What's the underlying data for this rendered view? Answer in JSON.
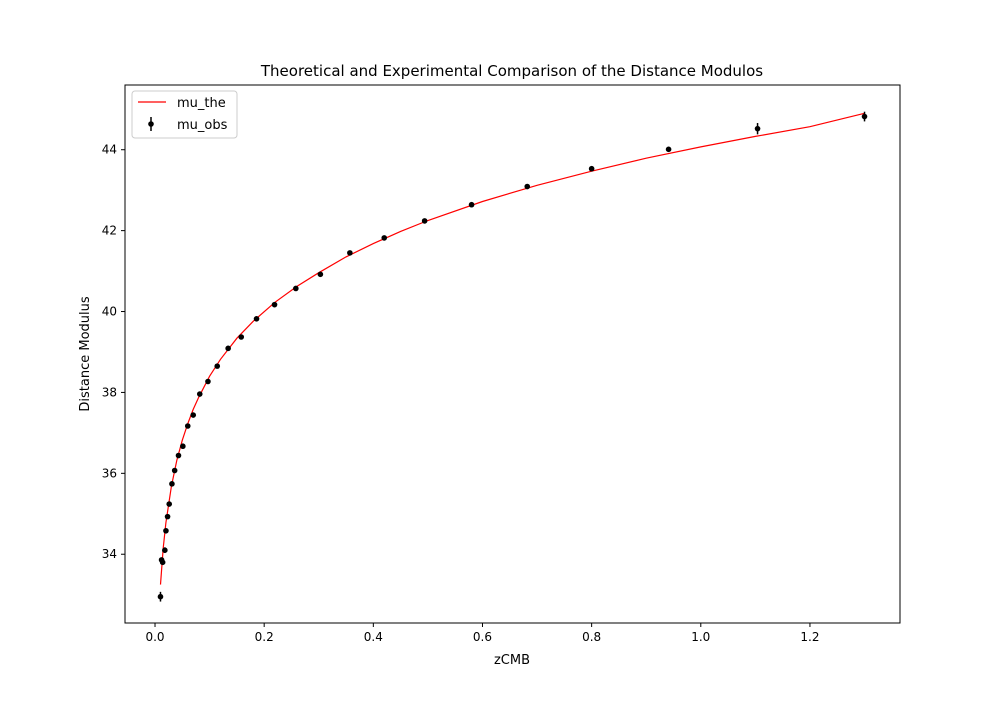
{
  "chart_data": {
    "type": "scatter",
    "title": "Theoretical and Experimental Comparison of the Distance Modulos",
    "xlabel": "zCMB",
    "ylabel": "Distance Modulus",
    "xlim": [
      -0.055,
      1.365
    ],
    "ylim": [
      32.3,
      45.6
    ],
    "xticks": [
      0.0,
      0.2,
      0.4,
      0.6,
      0.8,
      1.0,
      1.2
    ],
    "xtick_labels": [
      "0.0",
      "0.2",
      "0.4",
      "0.6",
      "0.8",
      "1.0",
      "1.2"
    ],
    "yticks": [
      34,
      36,
      38,
      40,
      42,
      44
    ],
    "ytick_labels": [
      "34",
      "36",
      "38",
      "40",
      "42",
      "44"
    ],
    "grid": false,
    "legend_position": "top-left",
    "series": [
      {
        "name": "mu_the",
        "kind": "line",
        "color": "#ff0000",
        "x": [
          0.01,
          0.015,
          0.02,
          0.03,
          0.04,
          0.05,
          0.06,
          0.07,
          0.08,
          0.1,
          0.12,
          0.15,
          0.18,
          0.22,
          0.26,
          0.3,
          0.35,
          0.4,
          0.45,
          0.5,
          0.6,
          0.7,
          0.8,
          0.9,
          1.0,
          1.1,
          1.2,
          1.3
        ],
        "values": [
          33.25,
          34.15,
          34.78,
          35.68,
          36.32,
          36.82,
          37.23,
          37.58,
          37.88,
          38.4,
          38.82,
          39.34,
          39.76,
          40.23,
          40.62,
          40.96,
          41.35,
          41.68,
          41.98,
          42.25,
          42.72,
          43.12,
          43.47,
          43.79,
          44.07,
          44.33,
          44.57,
          44.9
        ]
      },
      {
        "name": "mu_obs",
        "kind": "errorbar",
        "color": "#000000",
        "x": [
          0.01,
          0.012,
          0.014,
          0.018,
          0.02,
          0.023,
          0.026,
          0.031,
          0.036,
          0.043,
          0.051,
          0.06,
          0.07,
          0.082,
          0.097,
          0.114,
          0.134,
          0.158,
          0.186,
          0.219,
          0.258,
          0.303,
          0.357,
          0.42,
          0.494,
          0.58,
          0.682,
          0.8,
          0.941,
          1.104,
          1.3
        ],
        "values": [
          32.95,
          33.86,
          33.8,
          34.1,
          34.58,
          34.93,
          35.24,
          35.74,
          36.07,
          36.44,
          36.67,
          37.17,
          37.44,
          37.96,
          38.27,
          38.65,
          39.09,
          39.37,
          39.82,
          40.17,
          40.57,
          40.92,
          41.45,
          41.82,
          42.24,
          42.64,
          43.09,
          43.53,
          44.01,
          44.52,
          44.82
        ],
        "errors": [
          0.12,
          0.06,
          0.06,
          0.07,
          0.06,
          0.06,
          0.06,
          0.06,
          0.05,
          0.05,
          0.06,
          0.05,
          0.05,
          0.05,
          0.05,
          0.04,
          0.04,
          0.04,
          0.04,
          0.04,
          0.04,
          0.04,
          0.04,
          0.04,
          0.04,
          0.04,
          0.05,
          0.05,
          0.05,
          0.14,
          0.12
        ]
      }
    ]
  }
}
